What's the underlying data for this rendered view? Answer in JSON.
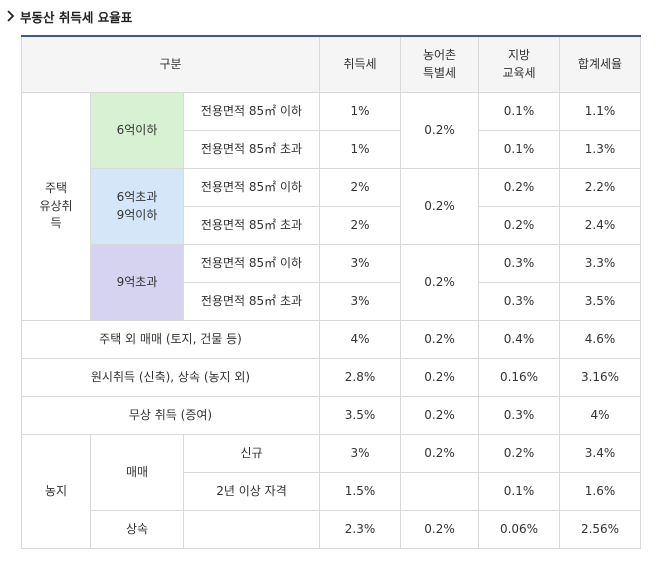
{
  "title": "부동산 취득세 요율표",
  "headers": {
    "category": "구분",
    "acq": "취득세",
    "rural_l1": "농어촌",
    "rural_l2": "특별세",
    "edu_l1": "지방",
    "edu_l2": "교육세",
    "total": "합계세율"
  },
  "housing": {
    "label_l1": "주택",
    "label_l2": "유상취",
    "label_l3": "득",
    "groups": [
      {
        "label_l1": "6억이하",
        "label_l2": "",
        "rows": [
          {
            "area": "전용면적 85㎡ 이하",
            "acq": "1%",
            "rural": "",
            "edu": "0.1%",
            "total": "1.1%"
          },
          {
            "area": "전용면적 85㎡ 초과",
            "acq": "1%",
            "rural": "0.2%",
            "edu": "0.1%",
            "total": "1.3%"
          }
        ]
      },
      {
        "label_l1": "6억초과",
        "label_l2": "9억이하",
        "rows": [
          {
            "area": "전용면적 85㎡ 이하",
            "acq": "2%",
            "rural": "",
            "edu": "0.2%",
            "total": "2.2%"
          },
          {
            "area": "전용면적 85㎡ 초과",
            "acq": "2%",
            "rural": "0.2%",
            "edu": "0.2%",
            "total": "2.4%"
          }
        ]
      },
      {
        "label_l1": "9억초과",
        "label_l2": "",
        "rows": [
          {
            "area": "전용면적 85㎡ 이하",
            "acq": "3%",
            "rural": "",
            "edu": "0.3%",
            "total": "3.3%"
          },
          {
            "area": "전용면적 85㎡ 초과",
            "acq": "3%",
            "rural": "0.2%",
            "edu": "0.3%",
            "total": "3.5%"
          }
        ]
      }
    ]
  },
  "others": [
    {
      "label": "주택 외 매매 (토지, 건물 등)",
      "acq": "4%",
      "rural": "0.2%",
      "edu": "0.4%",
      "total": "4.6%"
    },
    {
      "label": "원시취득 (신축), 상속 (농지 외)",
      "acq": "2.8%",
      "rural": "0.2%",
      "edu": "0.16%",
      "total": "3.16%"
    },
    {
      "label": "무상 취득 (증여)",
      "acq": "3.5%",
      "rural": "0.2%",
      "edu": "0.3%",
      "total": "4%"
    }
  ],
  "farmland": {
    "label": "농지",
    "sale_label": "매매",
    "sale_rows": [
      {
        "label": "신규",
        "acq": "3%",
        "rural": "0.2%",
        "edu": "0.2%",
        "total": "3.4%"
      },
      {
        "label": "2년 이상 자격",
        "acq": "1.5%",
        "rural": "",
        "edu": "0.1%",
        "total": "1.6%"
      }
    ],
    "inherit": {
      "label": "상속",
      "acq": "2.3%",
      "rural": "0.2%",
      "edu": "0.06%",
      "total": "2.56%"
    }
  }
}
